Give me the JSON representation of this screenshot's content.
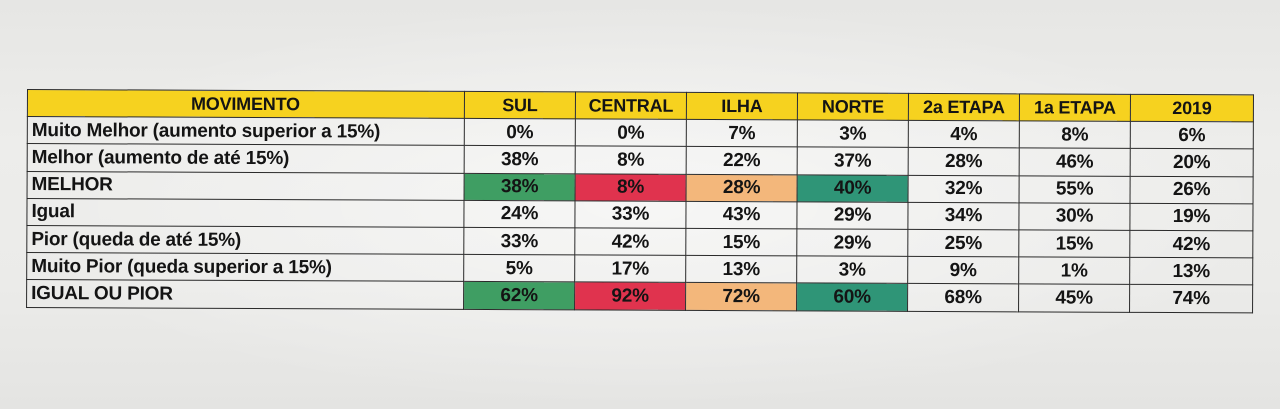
{
  "table": {
    "headers": [
      "MOVIMENTO",
      "SUL",
      "CENTRAL",
      "ILHA",
      "NORTE",
      "2a ETAPA",
      "1a ETAPA",
      "2019"
    ],
    "rows": [
      {
        "label": "Muito Melhor (aumento superior a 15%)",
        "values": [
          "0%",
          "0%",
          "7%",
          "3%",
          "4%",
          "8%",
          "6%"
        ]
      },
      {
        "label": "Melhor (aumento de até 15%)",
        "values": [
          "38%",
          "8%",
          "22%",
          "37%",
          "28%",
          "46%",
          "20%"
        ]
      },
      {
        "label": "MELHOR",
        "values": [
          "38%",
          "8%",
          "28%",
          "40%",
          "32%",
          "55%",
          "26%"
        ]
      },
      {
        "label": "Igual",
        "values": [
          "24%",
          "33%",
          "43%",
          "29%",
          "34%",
          "30%",
          "19%"
        ]
      },
      {
        "label": "Pior (queda de até 15%)",
        "values": [
          "33%",
          "42%",
          "15%",
          "29%",
          "25%",
          "15%",
          "42%"
        ]
      },
      {
        "label": "Muito Pior (queda superior a 15%)",
        "values": [
          "5%",
          "17%",
          "13%",
          "3%",
          "9%",
          "1%",
          "13%"
        ]
      },
      {
        "label": "IGUAL OU PIOR",
        "values": [
          "62%",
          "92%",
          "72%",
          "60%",
          "68%",
          "45%",
          "74%"
        ]
      }
    ]
  },
  "colors": {
    "header_background": "#f6d21f",
    "sul_highlight": "#3f9e63",
    "central_highlight": "#e0334e",
    "ilha_highlight": "#f3b77b",
    "norte_highlight": "#2f9577",
    "border": "#2a2a2a"
  }
}
